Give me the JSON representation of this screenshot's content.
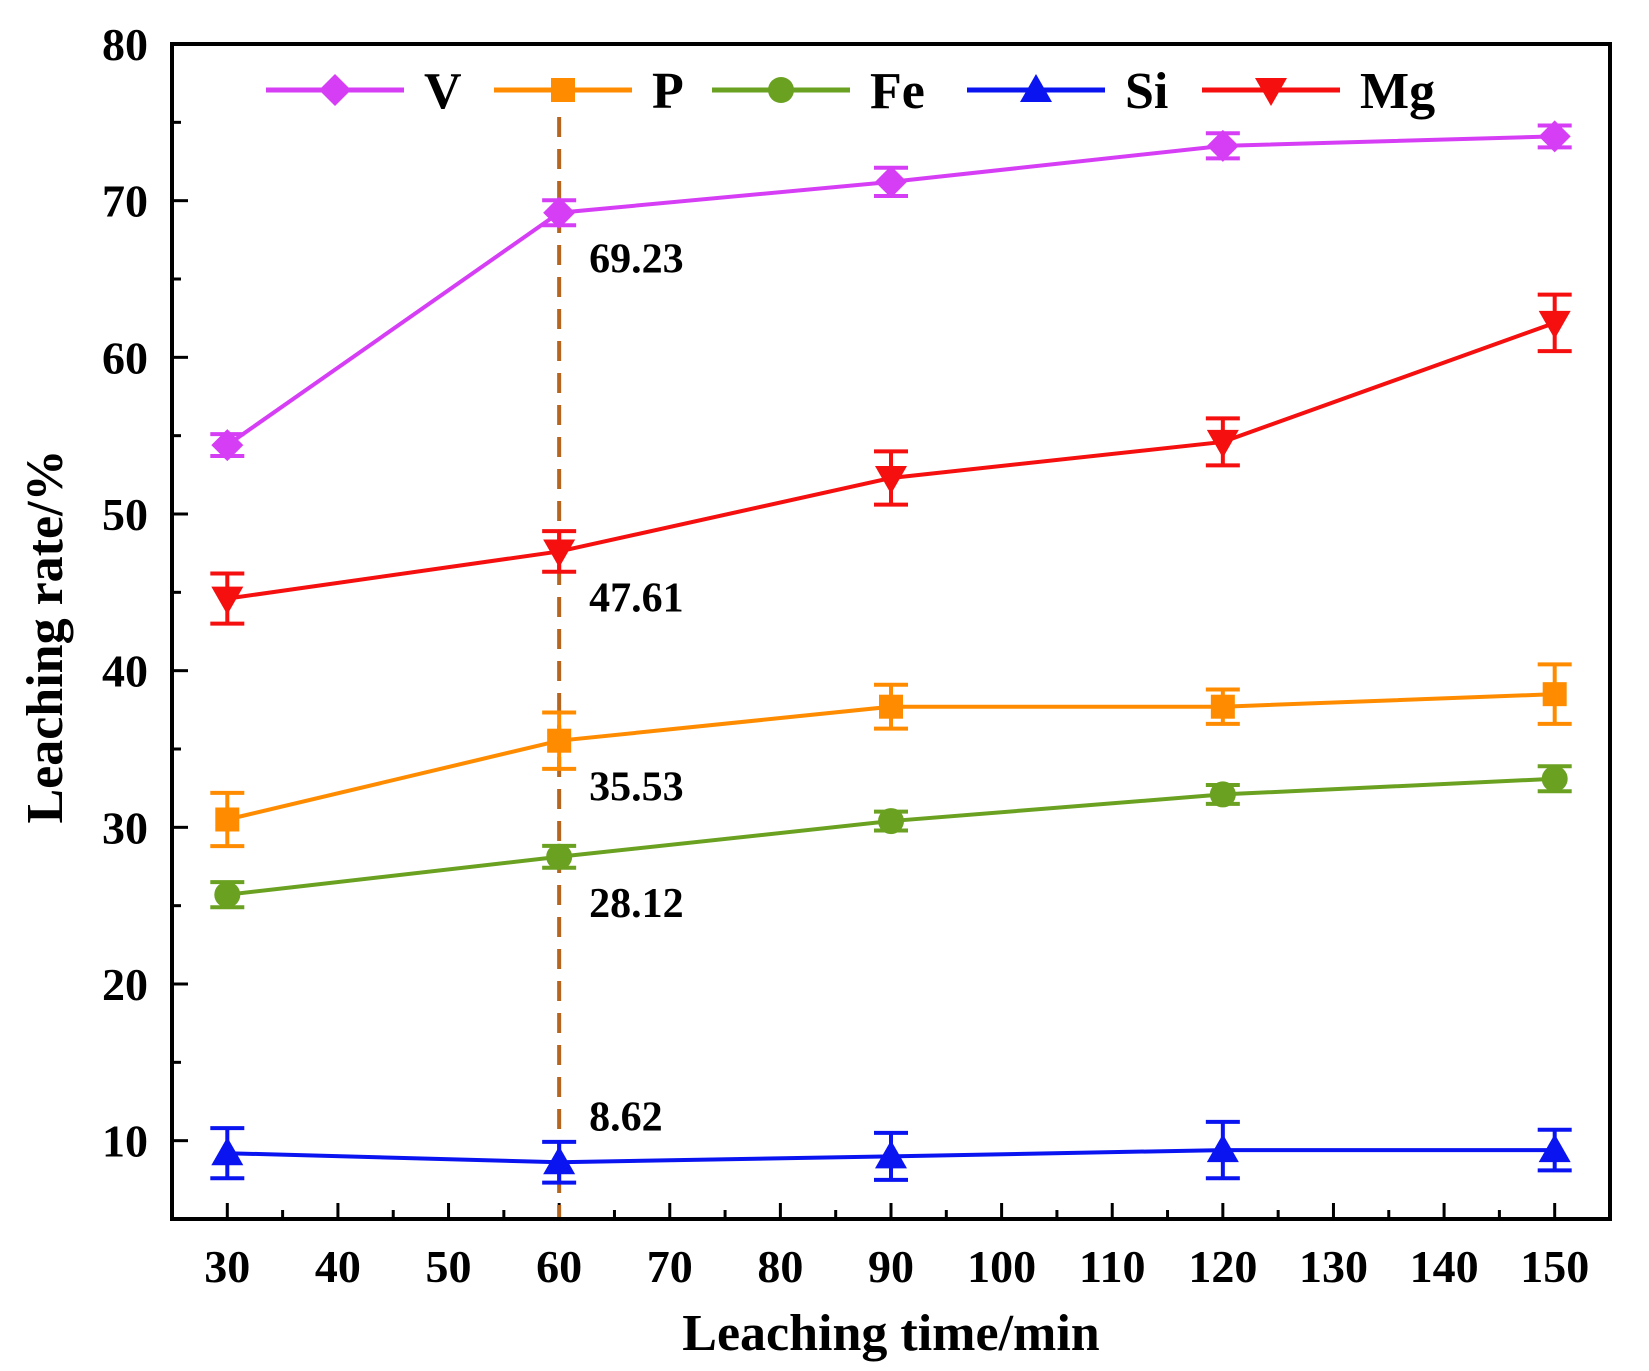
{
  "chart_data": {
    "type": "line",
    "title": "",
    "xlabel": "Leaching time/min",
    "ylabel": "Leaching rate/%",
    "xlim": [
      25,
      155
    ],
    "ylim": [
      5,
      80
    ],
    "xticks": [
      30,
      40,
      50,
      60,
      70,
      80,
      90,
      100,
      110,
      120,
      130,
      140,
      150
    ],
    "yticks": [
      10,
      20,
      30,
      40,
      50,
      60,
      70,
      80
    ],
    "x": [
      30,
      60,
      90,
      120,
      150
    ],
    "legend_position": "top",
    "series": [
      {
        "name": "V",
        "color": "#d63ef5",
        "marker": "diamond",
        "values": [
          54.4,
          69.23,
          71.2,
          73.5,
          74.1
        ],
        "errors": [
          0.7,
          0.8,
          0.9,
          0.8,
          0.7
        ]
      },
      {
        "name": "P",
        "color": "#ff8c00",
        "marker": "square",
        "values": [
          30.5,
          35.53,
          37.7,
          37.7,
          38.5
        ],
        "errors": [
          1.7,
          1.8,
          1.4,
          1.1,
          1.9
        ]
      },
      {
        "name": "Fe",
        "color": "#6aa121",
        "marker": "circle",
        "values": [
          25.7,
          28.12,
          30.4,
          32.1,
          33.1
        ],
        "errors": [
          0.8,
          0.7,
          0.6,
          0.6,
          0.8
        ]
      },
      {
        "name": "Si",
        "color": "#0a14f0",
        "marker": "triangle-up",
        "values": [
          9.2,
          8.62,
          9.0,
          9.4,
          9.4
        ],
        "errors": [
          1.6,
          1.3,
          1.5,
          1.8,
          1.3
        ]
      },
      {
        "name": "Mg",
        "color": "#f50f0f",
        "marker": "triangle-down",
        "values": [
          44.6,
          47.61,
          52.3,
          54.6,
          62.2
        ],
        "errors": [
          1.6,
          1.3,
          1.7,
          1.5,
          1.8
        ]
      }
    ],
    "reference_line": {
      "x": 60,
      "color": "#b5651d",
      "style": "dashed"
    },
    "annotations": [
      {
        "x": 60,
        "y": 69.23,
        "text": "69.23"
      },
      {
        "x": 60,
        "y": 47.61,
        "text": "47.61"
      },
      {
        "x": 60,
        "y": 35.53,
        "text": "35.53"
      },
      {
        "x": 60,
        "y": 28.12,
        "text": "28.12"
      },
      {
        "x": 60,
        "y": 8.62,
        "text": "8.62"
      }
    ]
  }
}
